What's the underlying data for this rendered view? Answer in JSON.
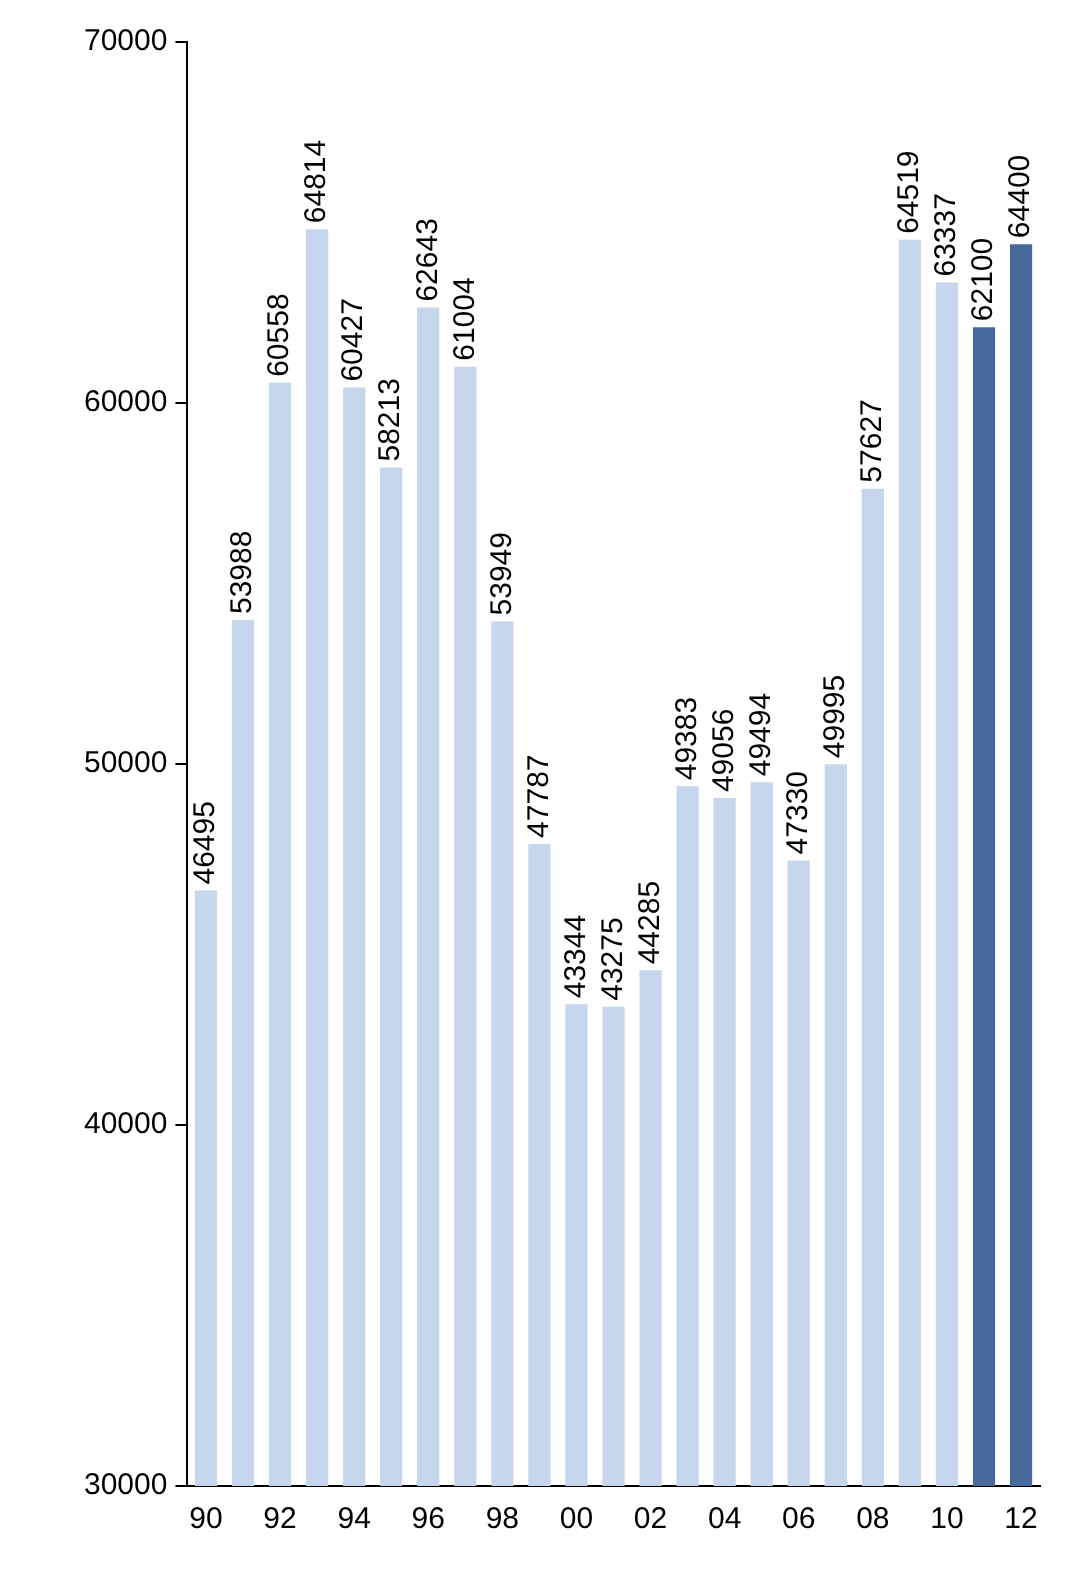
{
  "chart_data": {
    "type": "bar",
    "categories": [
      "90",
      null,
      "92",
      null,
      "94",
      null,
      "96",
      null,
      "98",
      null,
      "00",
      null,
      "02",
      null,
      "04",
      null,
      "06",
      null,
      "08",
      null,
      "10",
      null,
      "12"
    ],
    "values": [
      46495,
      53988,
      60558,
      64814,
      60427,
      58213,
      62643,
      61004,
      53949,
      47787,
      43344,
      43275,
      44285,
      49383,
      49056,
      49494,
      47330,
      49995,
      57627,
      64519,
      63337,
      62100,
      64400
    ],
    "colors": [
      "#c6d6ed",
      "#c6d6ed",
      "#c6d6ed",
      "#c6d6ed",
      "#c6d6ed",
      "#c6d6ed",
      "#c6d6ed",
      "#c6d6ed",
      "#c6d6ed",
      "#c6d6ed",
      "#c6d6ed",
      "#c6d6ed",
      "#c6d6ed",
      "#c6d6ed",
      "#c6d6ed",
      "#c6d6ed",
      "#c6d6ed",
      "#c6d6ed",
      "#c6d6ed",
      "#c6d6ed",
      "#c6d6ed",
      "#46699b",
      "#46699b"
    ],
    "ylim": [
      30000,
      70000
    ],
    "yticks": [
      30000,
      40000,
      50000,
      60000,
      70000
    ],
    "grid": false,
    "legend": false,
    "data_labels": true
  }
}
